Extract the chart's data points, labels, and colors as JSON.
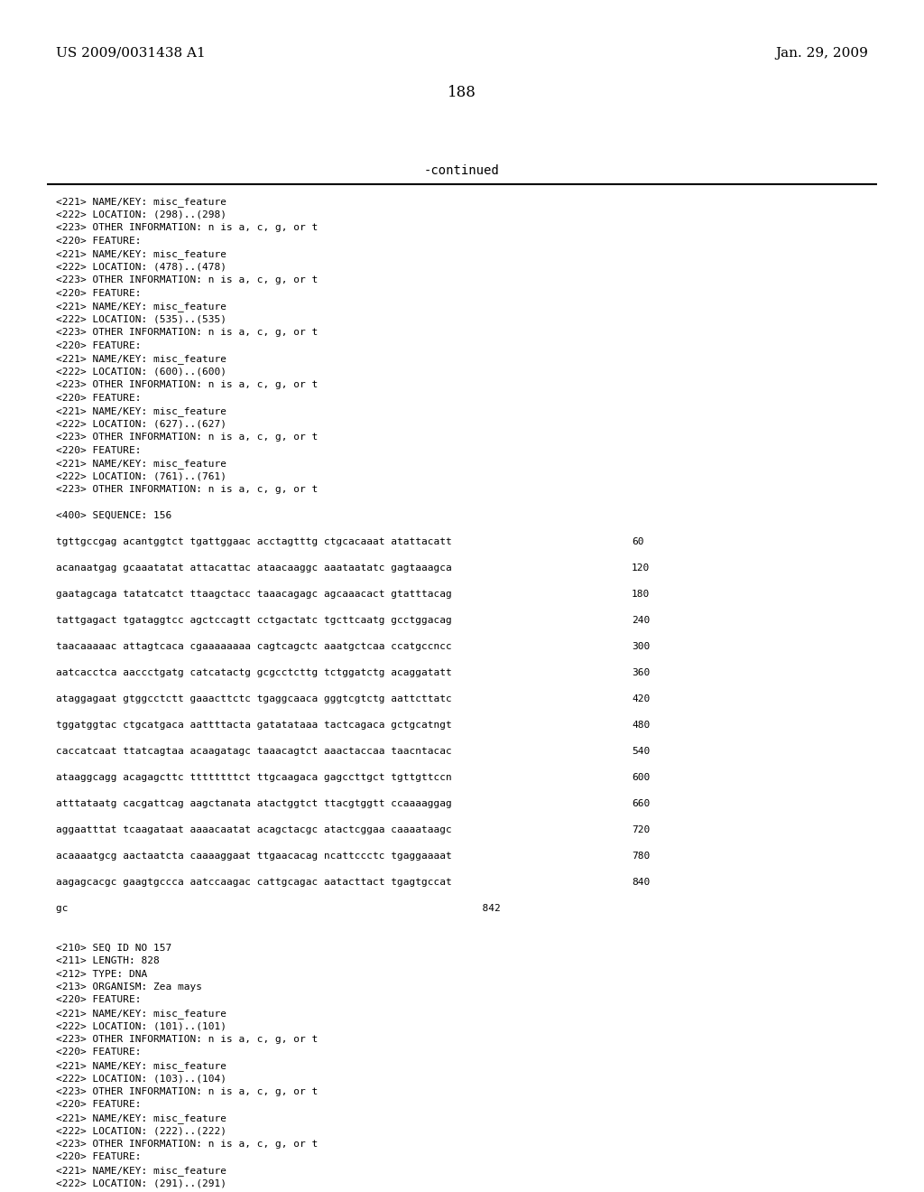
{
  "header_left": "US 2009/0031438 A1",
  "header_right": "Jan. 29, 2009",
  "page_number": "188",
  "continued_label": "-continued",
  "background_color": "#ffffff",
  "text_color": "#000000",
  "body_lines": [
    "<221> NAME/KEY: misc_feature",
    "<222> LOCATION: (298)..(298)",
    "<223> OTHER INFORMATION: n is a, c, g, or t",
    "<220> FEATURE:",
    "<221> NAME/KEY: misc_feature",
    "<222> LOCATION: (478)..(478)",
    "<223> OTHER INFORMATION: n is a, c, g, or t",
    "<220> FEATURE:",
    "<221> NAME/KEY: misc_feature",
    "<222> LOCATION: (535)..(535)",
    "<223> OTHER INFORMATION: n is a, c, g, or t",
    "<220> FEATURE:",
    "<221> NAME/KEY: misc_feature",
    "<222> LOCATION: (600)..(600)",
    "<223> OTHER INFORMATION: n is a, c, g, or t",
    "<220> FEATURE:",
    "<221> NAME/KEY: misc_feature",
    "<222> LOCATION: (627)..(627)",
    "<223> OTHER INFORMATION: n is a, c, g, or t",
    "<220> FEATURE:",
    "<221> NAME/KEY: misc_feature",
    "<222> LOCATION: (761)..(761)",
    "<223> OTHER INFORMATION: n is a, c, g, or t",
    "",
    "<400> SEQUENCE: 156",
    "",
    "tgttgccgag acantggtct tgattggaac acctagtttg ctgcacaaat atattacatt      60",
    "",
    "acanaatgag gcaaatatat attacattac ataacaaggc aaataatatc gagtaaagca     120",
    "",
    "gaatagcaga tatatcatct ttaagctacc taaacagagc agcaaacact gtatttacag     180",
    "",
    "tattgagact tgataggtcc agctccagtt cctgactatc tgcttcaatg gcctggacag     240",
    "",
    "taacaaaaac attagtcaca cgaaaaaaaa cagtcagctc aaatgctcaa ccatgccncc     300",
    "",
    "aatcacctca aaccctgatg catcatactg gcgcctcttg tctggatctg acaggatatt     360",
    "",
    "ataggagaat gtggcctctt gaaacttctc tgaggcaaca gggtcgtctg aattcttatc     420",
    "",
    "tggatggtac ctgcatgaca aattttacta gatatataaa tactcagaca gctgcatngt     480",
    "",
    "caccatcaat ttatcagtaa acaagatagc taaacagtct aaactaccaa taacntacac     540",
    "",
    "ataaggcagg acagagcttc ttttttttct ttgcaagaca gagccttgct tgttgttccn     600",
    "",
    "atttataatg cacgattcag aagctanata atactggtct ttacgtggtt ccaaaaggag     660",
    "",
    "aggaatttat tcaagataat aaaacaatat acagctacgc atactcggaa caaaataagc     720",
    "",
    "acaaaatgcg aactaatcta caaaaggaat ttgaacacag ncattccctc tgaggaaaat     780",
    "",
    "aagagcacgc gaagtgccca aatccaagac cattgcagac aatacttact tgagtgccat     840",
    "",
    "gc                                                                    842",
    "",
    "",
    "<210> SEQ ID NO 157",
    "<211> LENGTH: 828",
    "<212> TYPE: DNA",
    "<213> ORGANISM: Zea mays",
    "<220> FEATURE:",
    "<221> NAME/KEY: misc_feature",
    "<222> LOCATION: (101)..(101)",
    "<223> OTHER INFORMATION: n is a, c, g, or t",
    "<220> FEATURE:",
    "<221> NAME/KEY: misc_feature",
    "<222> LOCATION: (103)..(104)",
    "<223> OTHER INFORMATION: n is a, c, g, or t",
    "<220> FEATURE:",
    "<221> NAME/KEY: misc_feature",
    "<222> LOCATION: (222)..(222)",
    "<223> OTHER INFORMATION: n is a, c, g, or t",
    "<220> FEATURE:",
    "<221> NAME/KEY: misc_feature",
    "<222> LOCATION: (291)..(291)"
  ]
}
